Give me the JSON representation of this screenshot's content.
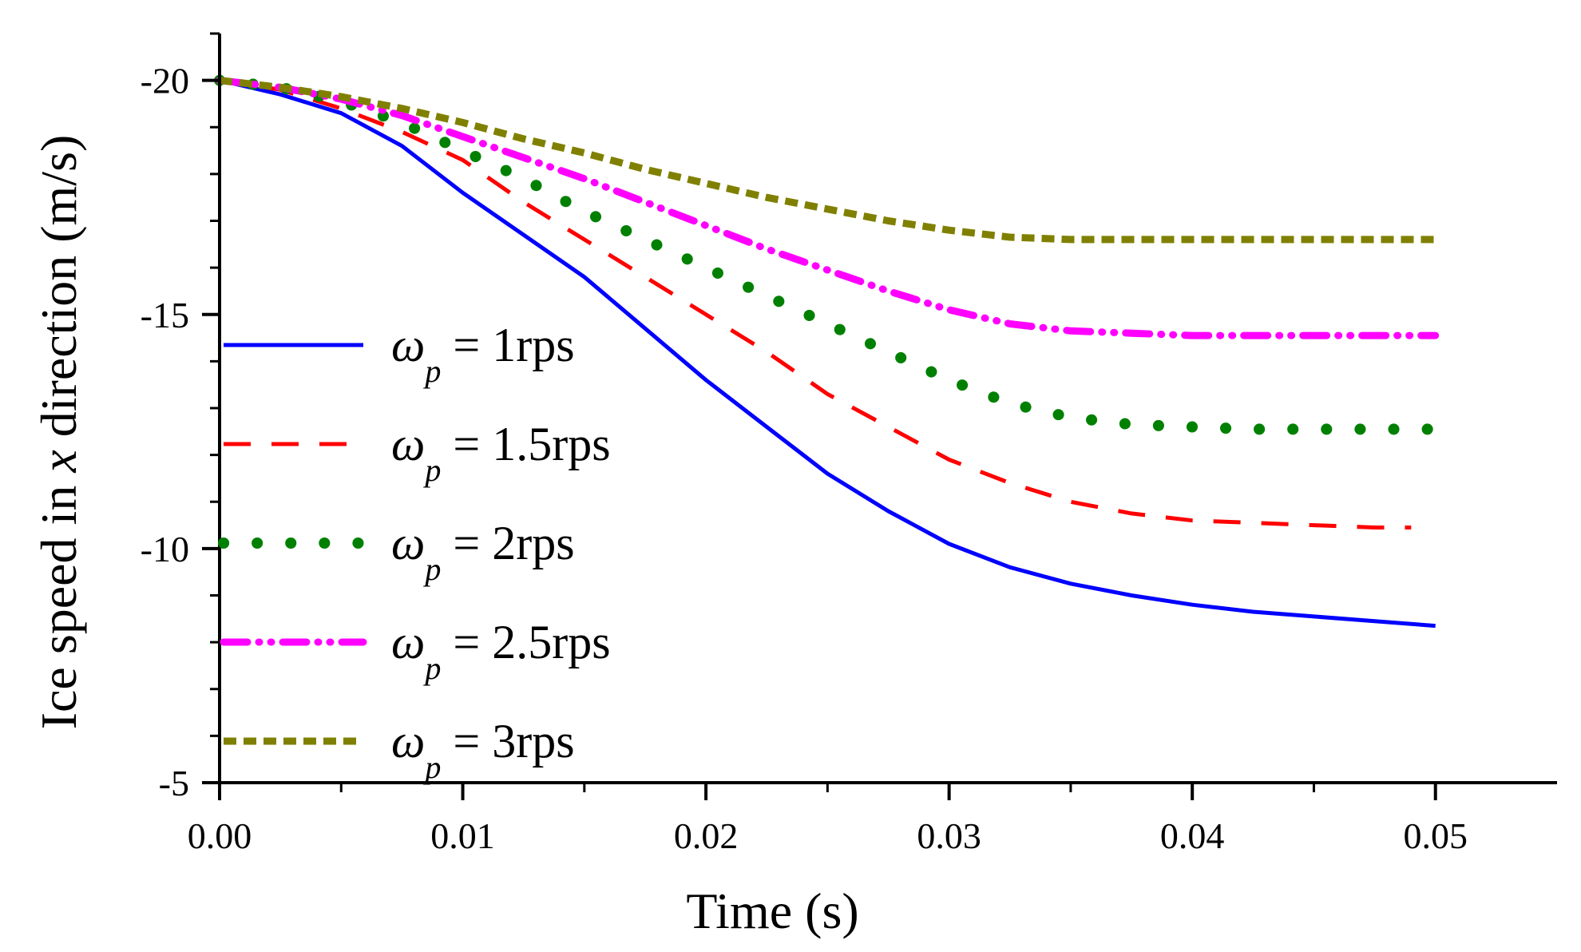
{
  "chart_data": {
    "type": "line",
    "title": "",
    "xlabel": "Time (s)",
    "ylabel": "Ice speed in x direction (m/s)",
    "ylabel_parts": {
      "before": "Ice speed in ",
      "var": "x",
      "after": " direction (m/s)"
    },
    "xlim": [
      0,
      0.055
    ],
    "ylim": [
      -5,
      -21
    ],
    "y_reversed": true,
    "grid": false,
    "legend_position": "left",
    "xticks": [
      0.0,
      0.01,
      0.02,
      0.03,
      0.04,
      0.05
    ],
    "xtick_labels": [
      "0.00",
      "0.01",
      "0.02",
      "0.03",
      "0.04",
      "0.05"
    ],
    "yticks": [
      -20,
      -15,
      -10,
      -5
    ],
    "ytick_labels": [
      "-20",
      "-15",
      "-10",
      "-5"
    ],
    "series": [
      {
        "name": "ω_p = 1rps",
        "legend": {
          "symbol": "ω",
          "sub": "p",
          "rest": " = 1rps"
        },
        "color": "#0000ff",
        "style": "solid",
        "x": [
          0.0,
          0.0025,
          0.005,
          0.0075,
          0.01,
          0.0125,
          0.015,
          0.0175,
          0.02,
          0.0225,
          0.025,
          0.0275,
          0.03,
          0.0325,
          0.035,
          0.0375,
          0.04,
          0.0425,
          0.045,
          0.0475,
          0.05
        ],
        "y": [
          -20.0,
          -19.7,
          -19.3,
          -18.6,
          -17.6,
          -16.7,
          -15.8,
          -14.7,
          -13.6,
          -12.6,
          -11.6,
          -10.8,
          -10.1,
          -9.6,
          -9.25,
          -9.0,
          -8.8,
          -8.65,
          -8.55,
          -8.45,
          -8.35
        ]
      },
      {
        "name": "ω_p = 1.5rps",
        "legend": {
          "symbol": "ω",
          "sub": "p",
          "rest": " = 1.5rps"
        },
        "color": "#ff0000",
        "style": "dash",
        "x": [
          0.0,
          0.0025,
          0.005,
          0.0075,
          0.01,
          0.0125,
          0.015,
          0.0175,
          0.02,
          0.0225,
          0.025,
          0.0275,
          0.03,
          0.0325,
          0.035,
          0.0375,
          0.04,
          0.0425,
          0.045,
          0.0475,
          0.049
        ],
        "y": [
          -20.0,
          -19.8,
          -19.4,
          -18.9,
          -18.3,
          -17.4,
          -16.6,
          -15.8,
          -15.0,
          -14.2,
          -13.3,
          -12.6,
          -11.9,
          -11.4,
          -11.0,
          -10.75,
          -10.6,
          -10.55,
          -10.5,
          -10.45,
          -10.45
        ]
      },
      {
        "name": "ω_p = 2rps",
        "legend": {
          "symbol": "ω",
          "sub": "p",
          "rest": " = 2rps"
        },
        "color": "#008000",
        "style": "dot",
        "x": [
          0.0,
          0.0025,
          0.005,
          0.0075,
          0.01,
          0.0125,
          0.015,
          0.0175,
          0.02,
          0.0225,
          0.025,
          0.0275,
          0.03,
          0.0325,
          0.035,
          0.0375,
          0.04,
          0.0425,
          0.045,
          0.0475,
          0.05
        ],
        "y": [
          -20.0,
          -19.85,
          -19.55,
          -19.1,
          -18.5,
          -17.9,
          -17.2,
          -16.6,
          -16.0,
          -15.4,
          -14.8,
          -14.2,
          -13.6,
          -13.1,
          -12.8,
          -12.65,
          -12.6,
          -12.55,
          -12.55,
          -12.55,
          -12.55
        ]
      },
      {
        "name": "ω_p = 2.5rps",
        "legend": {
          "symbol": "ω",
          "sub": "p",
          "rest": " = 2.5rps"
        },
        "color": "#ff00ff",
        "style": "dashdotdot",
        "x": [
          0.0,
          0.0025,
          0.005,
          0.0075,
          0.01,
          0.0125,
          0.015,
          0.0175,
          0.02,
          0.0225,
          0.025,
          0.0275,
          0.03,
          0.0325,
          0.035,
          0.0375,
          0.04,
          0.0425,
          0.045,
          0.0475,
          0.05
        ],
        "y": [
          -20.0,
          -19.85,
          -19.6,
          -19.25,
          -18.8,
          -18.35,
          -17.9,
          -17.4,
          -16.9,
          -16.4,
          -15.95,
          -15.5,
          -15.1,
          -14.8,
          -14.65,
          -14.6,
          -14.55,
          -14.55,
          -14.55,
          -14.55,
          -14.55
        ]
      },
      {
        "name": "ω_p = 3rps",
        "legend": {
          "symbol": "ω",
          "sub": "p",
          "rest": " = 3rps"
        },
        "color": "#808000",
        "style": "shortdash",
        "x": [
          0.0,
          0.0025,
          0.005,
          0.0075,
          0.01,
          0.0125,
          0.015,
          0.0175,
          0.02,
          0.0225,
          0.025,
          0.0275,
          0.03,
          0.0325,
          0.035,
          0.0375,
          0.04,
          0.0425,
          0.045,
          0.0475,
          0.05
        ],
        "y": [
          -20.0,
          -19.85,
          -19.65,
          -19.4,
          -19.1,
          -18.75,
          -18.45,
          -18.1,
          -17.8,
          -17.5,
          -17.25,
          -17.0,
          -16.8,
          -16.65,
          -16.6,
          -16.6,
          -16.6,
          -16.6,
          -16.6,
          -16.6,
          -16.6
        ]
      }
    ]
  }
}
